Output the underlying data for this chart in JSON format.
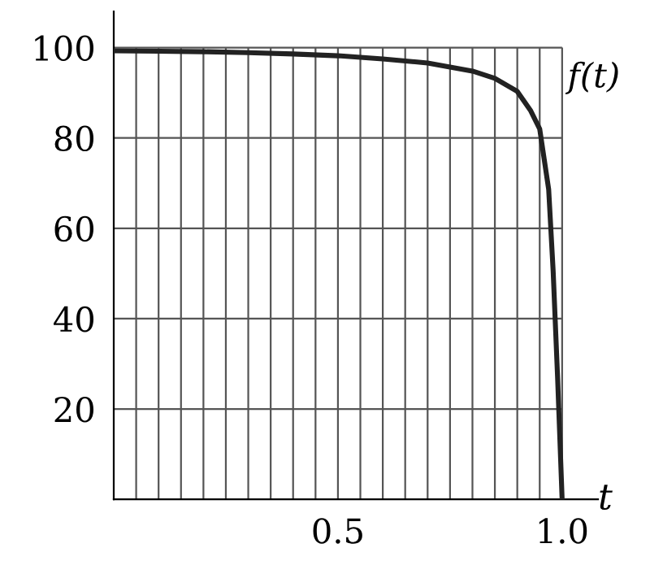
{
  "chart_data": {
    "type": "line",
    "xlabel": "t",
    "x": [
      0,
      0.1,
      0.2,
      0.3,
      0.4,
      0.5,
      0.6,
      0.7,
      0.8,
      0.85,
      0.9,
      0.93,
      0.95,
      0.97,
      0.98,
      0.99,
      1.0
    ],
    "series": [
      {
        "name": "f(t)",
        "color": "#222222",
        "values": [
          99.3,
          99.2,
          99.1,
          98.9,
          98.6,
          98.2,
          97.5,
          96.6,
          94.8,
          93.2,
          90.3,
          86,
          82,
          68.6,
          50.5,
          26.7,
          0
        ]
      }
    ],
    "xlim": [
      0,
      1.08
    ],
    "ylim": [
      0,
      108
    ],
    "xticks": [
      {
        "value": 0.05,
        "label": null
      },
      {
        "value": 0.1,
        "label": null
      },
      {
        "value": 0.15,
        "label": null
      },
      {
        "value": 0.2,
        "label": null
      },
      {
        "value": 0.25,
        "label": null
      },
      {
        "value": 0.3,
        "label": null
      },
      {
        "value": 0.35,
        "label": null
      },
      {
        "value": 0.4,
        "label": null
      },
      {
        "value": 0.45,
        "label": null
      },
      0.5,
      {
        "value": 0.55,
        "label": null
      },
      {
        "value": 0.6,
        "label": null
      },
      {
        "value": 0.65,
        "label": null
      },
      {
        "value": 0.7,
        "label": null
      },
      {
        "value": 0.75,
        "label": null
      },
      {
        "value": 0.8,
        "label": null
      },
      {
        "value": 0.85,
        "label": null
      },
      {
        "value": 0.9,
        "label": null
      },
      {
        "value": 0.95,
        "label": null
      },
      {
        "value": 1.0,
        "label": "1.0"
      }
    ],
    "yticks": [
      20,
      40,
      60,
      80,
      100
    ],
    "grid": true,
    "marker": "none",
    "line_style": "solid"
  }
}
